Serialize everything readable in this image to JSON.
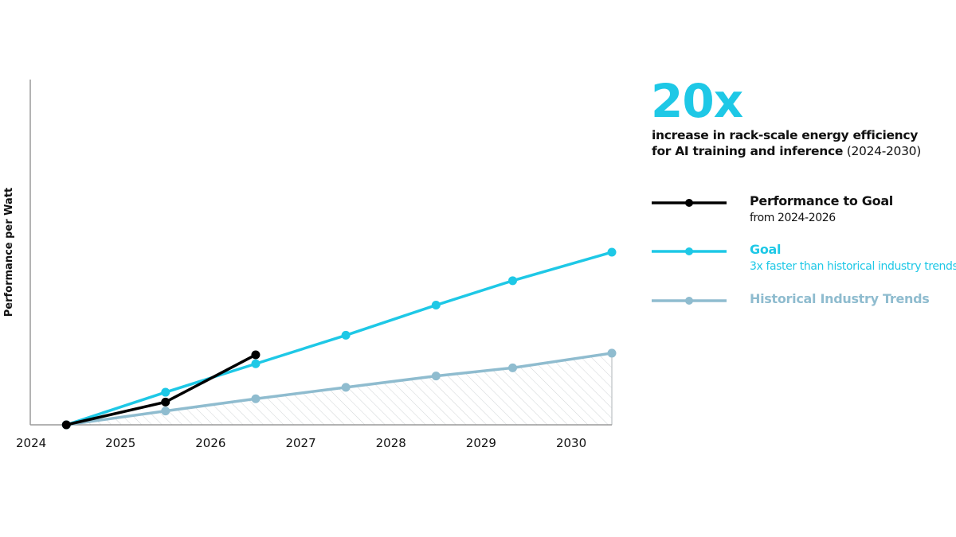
{
  "colors": {
    "performance": "#000000",
    "goal": "#1ec8e6",
    "historical": "#8fbccf",
    "hatch": "#d0d4d6",
    "axis": "#9a9a9a"
  },
  "headline": {
    "value": "20x",
    "line1": "increase in rack-scale energy efficiency",
    "line2_bold": "for AI training and inference",
    "line2_rest": " (2024-2030)"
  },
  "legend": [
    {
      "title": "Performance to Goal",
      "subtitle": "from 2024-2026"
    },
    {
      "title": "Goal",
      "subtitle": "3x faster than historical industry trends"
    },
    {
      "title": "Historical Industry Trends",
      "subtitle": ""
    }
  ],
  "chart_data": {
    "type": "line",
    "ylabel": "Performance per Watt",
    "xlabel": "",
    "x_ticks": [
      "2024",
      "2025",
      "2026",
      "2027",
      "2028",
      "2029",
      "2030"
    ],
    "xlim": [
      2024.0,
      2030.45
    ],
    "ylim": [
      0,
      21.2
    ],
    "y_ticks_shown": false,
    "grid": false,
    "legend_position": "right",
    "series": [
      {
        "name": "Performance to Goal",
        "points": [
          [
            2024.4,
            0
          ],
          [
            2025.5,
            1.4
          ],
          [
            2026.5,
            4.3
          ]
        ]
      },
      {
        "name": "Goal",
        "points": [
          [
            2024.4,
            0
          ],
          [
            2025.5,
            2.0
          ],
          [
            2026.5,
            3.75
          ],
          [
            2027.5,
            5.5
          ],
          [
            2028.5,
            7.35
          ],
          [
            2029.35,
            8.85
          ],
          [
            2030.45,
            10.6
          ]
        ]
      },
      {
        "name": "Historical Industry Trends",
        "points": [
          [
            2024.4,
            0
          ],
          [
            2025.5,
            0.85
          ],
          [
            2026.5,
            1.6
          ],
          [
            2027.5,
            2.3
          ],
          [
            2028.5,
            3.0
          ],
          [
            2029.35,
            3.5
          ],
          [
            2030.45,
            4.4
          ]
        ]
      }
    ]
  }
}
